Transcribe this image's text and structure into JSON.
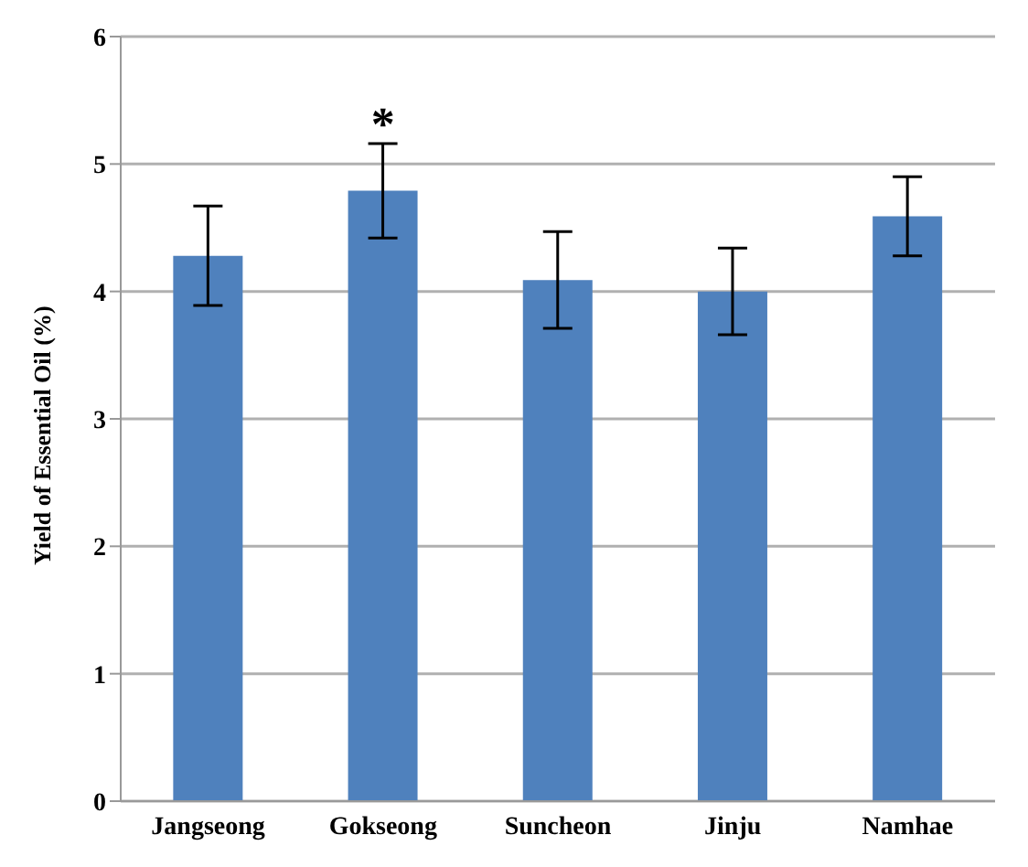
{
  "chart_data": {
    "type": "bar",
    "ylabel": "Yield of Essential Oil (%)",
    "categories": [
      "Jangseong",
      "Gokseong",
      "Suncheon",
      "Jinju",
      "Namhae"
    ],
    "values": [
      4.28,
      4.79,
      4.09,
      4.0,
      4.59
    ],
    "errors": [
      0.39,
      0.37,
      0.38,
      0.34,
      0.31
    ],
    "color": "#4f81bd",
    "ylim": [
      0,
      6
    ],
    "yticks": [
      0,
      1,
      2,
      3,
      4,
      5,
      6
    ],
    "grid": "y",
    "annotations": [
      {
        "text": "*",
        "x": "Gokseong",
        "y": 5.16
      }
    ]
  }
}
